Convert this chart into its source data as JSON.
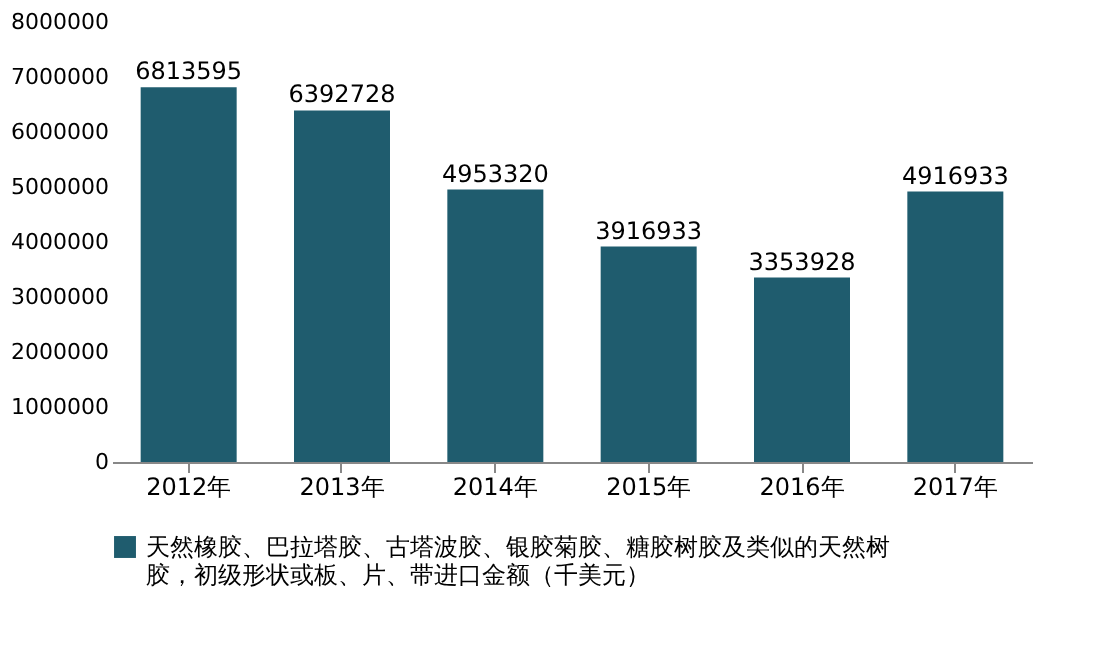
{
  "chart_data": {
    "type": "bar",
    "categories": [
      "2012年",
      "2013年",
      "2014年",
      "2015年",
      "2016年",
      "2017年"
    ],
    "series": [
      {
        "name": "天然橡胶、巴拉塔胶、古塔波胶、银胶菊胶、糖胶树胶及类似的天然树胶，初级形状或板、片、带进口金额（千美元）",
        "color": "#1f5c6e",
        "values": [
          6813595,
          6392728,
          4953320,
          3916933,
          3353928,
          4916933
        ]
      }
    ],
    "ylim": [
      0,
      8000000
    ],
    "yticks": [
      0,
      1000000,
      2000000,
      3000000,
      4000000,
      5000000,
      6000000,
      7000000,
      8000000
    ],
    "data_labels": true,
    "legend": "bottom",
    "grid": false
  }
}
